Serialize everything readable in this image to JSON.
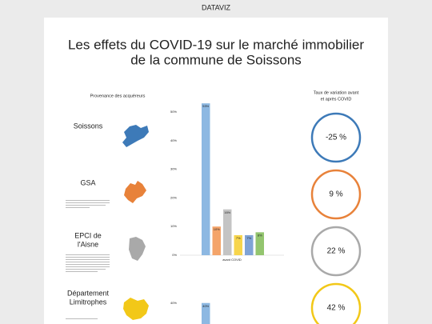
{
  "header": {
    "app": "DATAVIZ",
    "title_1": "Les effets du COVID-19 sur le marché immobilier",
    "title_2": "de la commune de Soissons"
  },
  "origins": {
    "title": "Provenance des acquéreurs",
    "rows": [
      {
        "name_1": "Soissons",
        "color": "#3d7ab8"
      },
      {
        "name_1": "GSA",
        "color": "#e8823a"
      },
      {
        "name_1": "EPCI de",
        "name_2": "l'Aisne",
        "color": "#a9a9a9"
      },
      {
        "name_1": "Département",
        "name_2": "Limitrophes",
        "color": "#f2c818"
      }
    ]
  },
  "chart_data": [
    {
      "type": "bar",
      "category": "avant COVID",
      "values": [
        53,
        10,
        16,
        7,
        7,
        8
      ],
      "value_labels": [
        "53%",
        "10%",
        "16%",
        "7%",
        "7%",
        "8%"
      ],
      "colors": [
        "#8db8e2",
        "#f4a46a",
        "#c4c4c4",
        "#f7d54c",
        "#7fa3d6",
        "#93c56f"
      ],
      "ylim": [
        0,
        55
      ],
      "yticks": [
        {
          "value": 0,
          "label": "0%"
        },
        {
          "value": 10,
          "label": "10%"
        },
        {
          "value": 20,
          "label": "20%"
        },
        {
          "value": 30,
          "label": "30%"
        },
        {
          "value": 40,
          "label": "40%"
        },
        {
          "value": 50,
          "label": "50%"
        }
      ]
    },
    {
      "type": "bar",
      "values": [
        40
      ],
      "value_labels": [
        "40%"
      ],
      "colors": [
        "#8db8e2"
      ],
      "ylim": [
        0,
        55
      ],
      "yticks": [
        {
          "value": 40,
          "label": "40%"
        }
      ]
    }
  ],
  "variation": {
    "title_1": "Taux de variation avant",
    "title_2": "et après COVID",
    "items": [
      {
        "label": "-25 %",
        "color": "#3d7ab8"
      },
      {
        "label": "9 %",
        "color": "#e8823a"
      },
      {
        "label": "22 %",
        "color": "#a9a9a9"
      },
      {
        "label": "42 %",
        "color": "#d9a800",
        "ring": "#f2c818"
      }
    ]
  }
}
